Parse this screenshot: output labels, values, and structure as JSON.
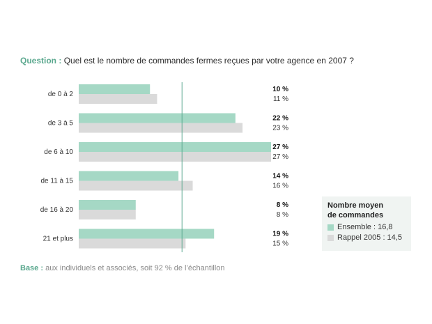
{
  "question": {
    "label": "Question :",
    "text": "Quel est le nombre de commandes fermes reçues par votre agence en 2007 ?"
  },
  "chart_data": {
    "type": "bar",
    "orientation": "horizontal",
    "categories": [
      "de 0 à 2",
      "de 3 à 5",
      "de 6 à 10",
      "de 11 à 15",
      "de 16 à 20",
      "21 et plus"
    ],
    "series": [
      {
        "name": "Ensemble : 16,8",
        "color": "#a5d8c5",
        "values": [
          10,
          22,
          27,
          14,
          8,
          19
        ],
        "labels": [
          "10 %",
          "22 %",
          "27 %",
          "14 %",
          "8 %",
          "19 %"
        ]
      },
      {
        "name": "Rappel 2005 : 14,5",
        "color": "#dadada",
        "values": [
          11,
          23,
          27,
          16,
          8,
          15
        ],
        "labels": [
          "11 %",
          "23 %",
          "27 %",
          "16 %",
          "8 %",
          "15 %"
        ]
      }
    ],
    "xlim": [
      0,
      27
    ],
    "reference_line": 14.5,
    "reference_line_color": "#5aa88e"
  },
  "legend": {
    "title_line1": "Nombre moyen",
    "title_line2": "de commandes",
    "item1": "Ensemble : 16,8",
    "item2": "Rappel 2005 : 14,5"
  },
  "footnote": {
    "label": "Base :",
    "text": "aux individuels et associés, soit 92 % de l’échantillon"
  }
}
